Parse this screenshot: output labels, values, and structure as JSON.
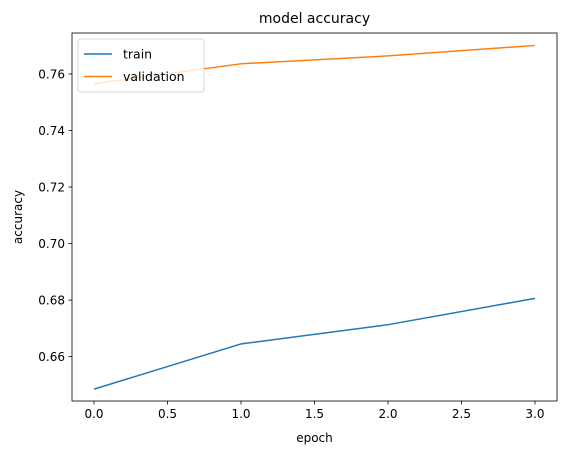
{
  "chart_data": {
    "type": "line",
    "title": "model accuracy",
    "xlabel": "epoch",
    "ylabel": "accuracy",
    "x": [
      0,
      1,
      2,
      3
    ],
    "xlim": [
      -0.15,
      3.15
    ],
    "ylim": [
      0.6443,
      0.7745
    ],
    "xticks": [
      0.0,
      0.5,
      1.0,
      1.5,
      2.0,
      2.5,
      3.0
    ],
    "xtick_labels": [
      "0.0",
      "0.5",
      "1.0",
      "1.5",
      "2.0",
      "2.5",
      "3.0"
    ],
    "yticks": [
      0.66,
      0.68,
      0.7,
      0.72,
      0.74,
      0.76
    ],
    "ytick_labels": [
      "0.66",
      "0.68",
      "0.70",
      "0.72",
      "0.74",
      "0.76"
    ],
    "grid": false,
    "legend_position": "top-left",
    "series": [
      {
        "name": "train",
        "color": "#1f77b4",
        "values": [
          0.6485,
          0.6645,
          0.6713,
          0.6806
        ]
      },
      {
        "name": "validation",
        "color": "#ff7f0e",
        "values": [
          0.7566,
          0.7636,
          0.7664,
          0.7701
        ]
      }
    ]
  }
}
